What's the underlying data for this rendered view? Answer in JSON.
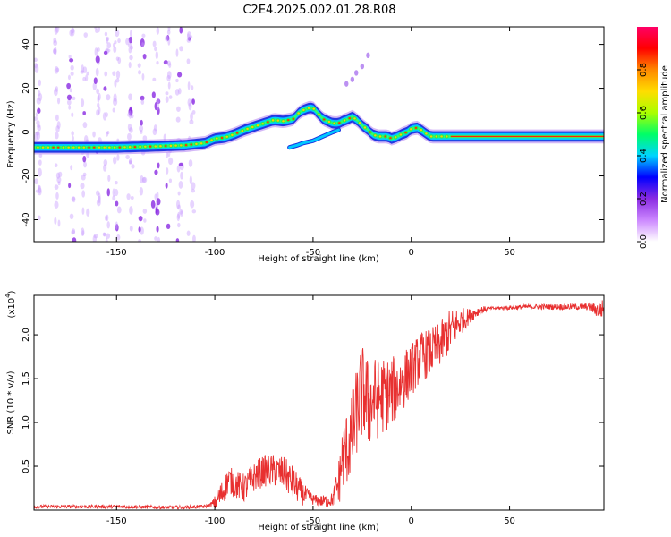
{
  "title": "C2E4.2025.002.01.28.R08",
  "chart_data": [
    {
      "type": "heatmap",
      "name": "spectrogram",
      "xlabel": "Height of straight line (km)",
      "ylabel": "Frequency (Hz)",
      "xlim": [
        -192,
        98
      ],
      "ylim": [
        -50,
        48
      ],
      "xticks": [
        -150,
        -100,
        -50,
        0,
        50
      ],
      "xtick_labels": [
        "-150",
        "-100",
        "-50",
        "0",
        "50"
      ],
      "yticks": [
        -40,
        -20,
        0,
        20,
        40
      ],
      "ytick_labels": [
        "-40",
        "-20",
        "0",
        "20",
        "40"
      ],
      "ridge": {
        "x": [
          -192,
          -170,
          -150,
          -130,
          -115,
          -105,
          -100,
          -95,
          -90,
          -85,
          -80,
          -75,
          -70,
          -65,
          -60,
          -57,
          -55,
          -52,
          -50,
          -45,
          -40,
          -37,
          -35,
          -32,
          -30,
          -27,
          -25,
          -22,
          -20,
          -17,
          -15,
          -12,
          -10,
          -7,
          -5,
          -2,
          0,
          3,
          5,
          8,
          10,
          15,
          20,
          30,
          50,
          70,
          98
        ],
        "y": [
          -7,
          -7,
          -7,
          -6.5,
          -6,
          -5,
          -3,
          -2.5,
          -1,
          1,
          2.5,
          4,
          5.5,
          5,
          6,
          9,
          10,
          11,
          11,
          6,
          4,
          4,
          5,
          6,
          7,
          5,
          3,
          1,
          -1,
          -2,
          -2,
          -2,
          -3,
          -2,
          -1,
          0,
          1.5,
          2,
          1,
          -1,
          -2,
          -2,
          -2,
          -2,
          -2,
          -2,
          -2
        ]
      },
      "branch": {
        "x": [
          -62,
          -58,
          -55,
          -50,
          -45,
          -40,
          -37
        ],
        "y": [
          -7,
          -6,
          -5,
          -4,
          -2,
          0,
          1
        ]
      },
      "arc_points": {
        "x": [
          -33,
          -30,
          -28,
          -25,
          -22
        ],
        "y": [
          22,
          24,
          27,
          30,
          35
        ]
      },
      "noise_columns_x": [
        -190,
        -180,
        -173,
        -166,
        -160,
        -155,
        -150,
        -143,
        -137,
        -130,
        -124,
        -118,
        -112
      ],
      "colorbar": {
        "label": "Normalized spectral amplitude",
        "range": [
          0,
          1
        ],
        "ticks": [
          0.0,
          0.2,
          0.4,
          0.6,
          0.8
        ],
        "tick_labels": [
          "0.0",
          "0.2",
          "0.4",
          "0.6",
          "0.8"
        ],
        "colormap": [
          "#ffffff",
          "#cc88ff",
          "#8a2be2",
          "#0000ff",
          "#00d4ff",
          "#00ff66",
          "#aaff00",
          "#ffdd00",
          "#ff8800",
          "#ff0000",
          "#ff0066"
        ]
      }
    },
    {
      "type": "line",
      "name": "snr",
      "xlabel": "Height of straight line (km)",
      "ylabel": "SNR (10 * v/v)",
      "y_scale_label": "(x10",
      "y_scale_exponent": "4",
      "xlim": [
        -192,
        98
      ],
      "ylim": [
        0,
        2.45
      ],
      "xticks": [
        -150,
        -100,
        -50,
        0,
        50
      ],
      "xtick_labels": [
        "-150",
        "-100",
        "-50",
        "0",
        "50"
      ],
      "yticks": [
        0.5,
        1.0,
        1.5,
        2.0
      ],
      "ytick_labels": [
        "0.5",
        "1.0",
        "1.5",
        "2.0"
      ],
      "color": "#e83030",
      "envelope": {
        "x": [
          -192,
          -150,
          -120,
          -105,
          -100,
          -96,
          -93,
          -90,
          -85,
          -80,
          -75,
          -70,
          -65,
          -62,
          -60,
          -55,
          -50,
          -45,
          -40,
          -37,
          -35,
          -32,
          -30,
          -28,
          -26,
          -24,
          -22,
          -20,
          -15,
          -10,
          -5,
          0,
          5,
          10,
          15,
          20,
          25,
          30,
          35,
          40,
          50,
          60,
          70,
          80,
          90,
          95,
          98
        ],
        "y": [
          0.04,
          0.04,
          0.03,
          0.04,
          0.08,
          0.2,
          0.35,
          0.3,
          0.25,
          0.38,
          0.45,
          0.45,
          0.42,
          0.35,
          0.3,
          0.18,
          0.12,
          0.1,
          0.12,
          0.3,
          0.6,
          0.75,
          0.85,
          1.1,
          1.3,
          1.35,
          1.2,
          1.25,
          1.3,
          1.35,
          1.45,
          1.6,
          1.75,
          1.8,
          1.9,
          2.05,
          2.15,
          2.22,
          2.28,
          2.3,
          2.31,
          2.32,
          2.32,
          2.32,
          2.32,
          2.28,
          2.3
        ]
      },
      "noise_amplitude": {
        "x": [
          -192,
          -102,
          -98,
          -60,
          -50,
          -40,
          -35,
          -25,
          0,
          20,
          30,
          40,
          90,
          98
        ],
        "y": [
          0.02,
          0.02,
          0.15,
          0.2,
          0.06,
          0.08,
          0.4,
          0.55,
          0.3,
          0.25,
          0.08,
          0.02,
          0.04,
          0.12
        ]
      }
    }
  ]
}
